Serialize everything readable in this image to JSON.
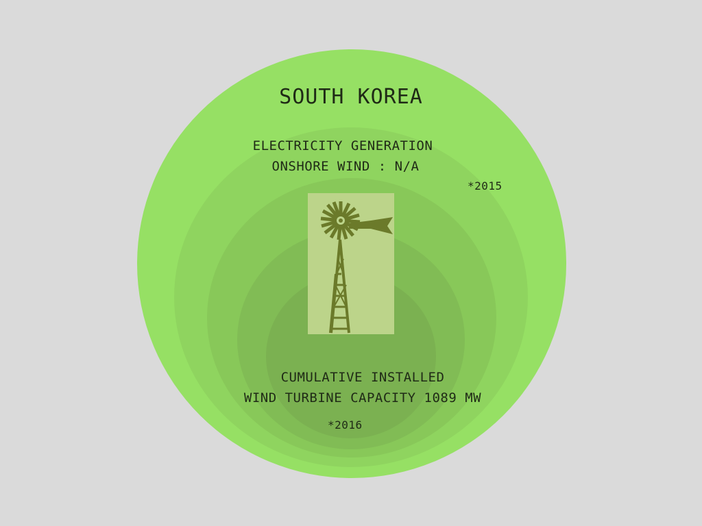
{
  "header": {
    "title": "SOUTH KOREA"
  },
  "generation": {
    "line1": "ELECTRICITY GENERATION",
    "line2": "ONSHORE WIND : N/A",
    "year_note": "*2015"
  },
  "capacity": {
    "line1": "CUMULATIVE INSTALLED",
    "line2": "WIND TURBINE CAPACITY 1089 MW",
    "year_note": "*2016"
  },
  "colors": {
    "background": "#dadada",
    "outer_circle": "#96e064",
    "inner_circle": "#7bb151",
    "panel": "#bcd48a",
    "windmill": "#6b7a2a",
    "text": "#1f2a16"
  },
  "icons": {
    "windmill": "windmill-icon"
  }
}
